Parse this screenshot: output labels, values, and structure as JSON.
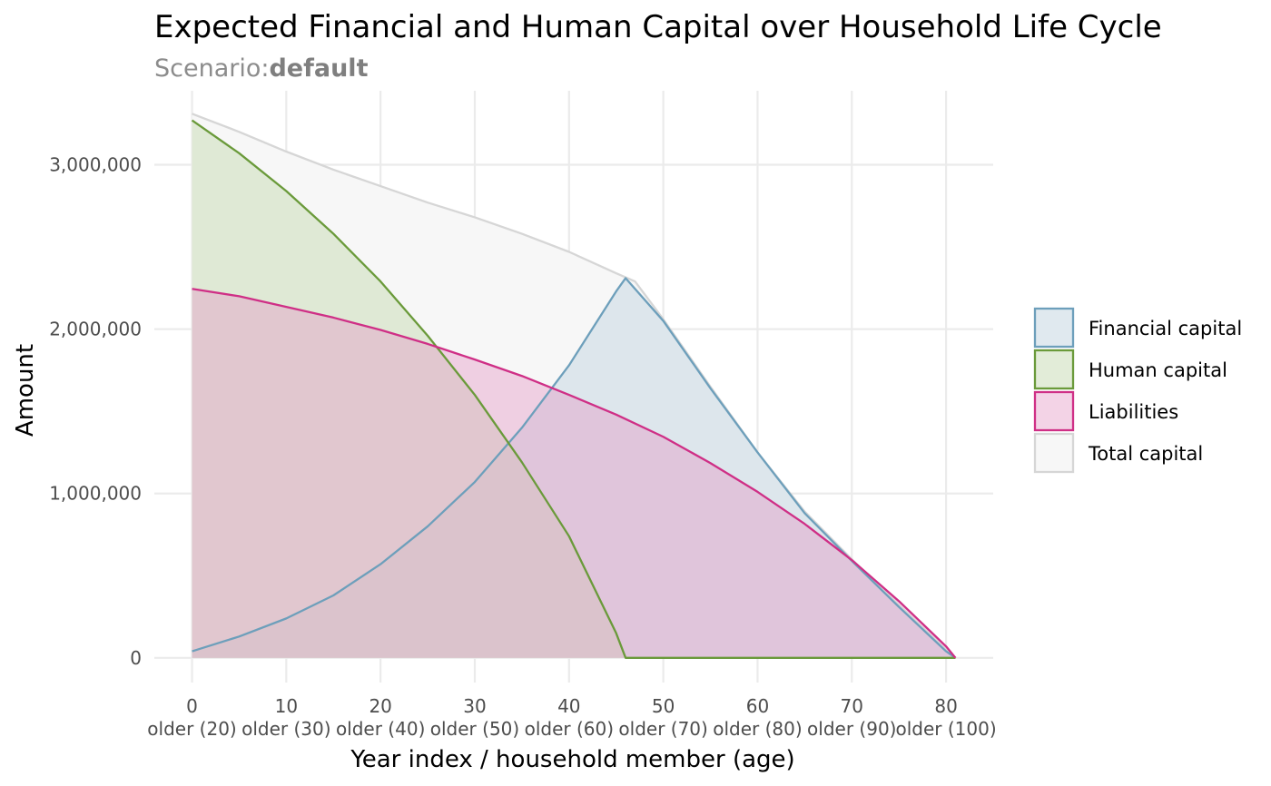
{
  "chart_data": {
    "type": "area",
    "title": "Expected Financial and Human Capital over Household Life Cycle",
    "subtitle_prefix": "Scenario:",
    "subtitle_value": "default",
    "xlabel": "Year index / household member (age)",
    "ylabel": "Amount",
    "xlim": [
      -4,
      85
    ],
    "ylim": [
      -150000,
      3450000
    ],
    "x_ticks": [
      0,
      10,
      20,
      30,
      40,
      50,
      60,
      70,
      80
    ],
    "x_tick_labels": [
      "0",
      "10",
      "20",
      "30",
      "40",
      "50",
      "60",
      "70",
      "80"
    ],
    "x_tick_sublabels": [
      "older (20)",
      "older (30)",
      "older (40)",
      "older (50)",
      "older (60)",
      "older (70)",
      "older (80)",
      "older (90)",
      "older (100)"
    ],
    "y_ticks": [
      0,
      1000000,
      2000000,
      3000000
    ],
    "y_tick_labels": [
      "0",
      "1,000,000",
      "2,000,000",
      "3,000,000"
    ],
    "grid": true,
    "legend_position": "right",
    "series": [
      {
        "name": "Total capital",
        "line_color": "#d6d6d6",
        "fill_color": "#f7f7f7",
        "fill_opacity": 1,
        "x": [
          0,
          5,
          10,
          15,
          20,
          25,
          30,
          35,
          40,
          45,
          47,
          50,
          55,
          60,
          65,
          70,
          75,
          80,
          81
        ],
        "y": [
          3310000,
          3200000,
          3080000,
          2970000,
          2870000,
          2770000,
          2680000,
          2580000,
          2470000,
          2340000,
          2290000,
          2060000,
          1650000,
          1250000,
          890000,
          600000,
          320000,
          50000,
          0
        ]
      },
      {
        "name": "Financial capital",
        "line_color": "#6d9fbb",
        "fill_color": "#cbdbe4",
        "fill_opacity": 0.6,
        "x": [
          0,
          5,
          10,
          15,
          20,
          25,
          30,
          35,
          40,
          45,
          46,
          50,
          55,
          60,
          65,
          70,
          75,
          80,
          81
        ],
        "y": [
          40000,
          130000,
          240000,
          380000,
          570000,
          800000,
          1070000,
          1400000,
          1780000,
          2230000,
          2310000,
          2050000,
          1640000,
          1250000,
          880000,
          590000,
          310000,
          40000,
          0
        ]
      },
      {
        "name": "Human capital",
        "line_color": "#6a9a3a",
        "fill_color": "#cfe0be",
        "fill_opacity": 0.6,
        "x": [
          0,
          5,
          10,
          15,
          20,
          25,
          30,
          35,
          40,
          45,
          46,
          50,
          55,
          60,
          65,
          70,
          75,
          80,
          81
        ],
        "y": [
          3270000,
          3070000,
          2840000,
          2580000,
          2290000,
          1960000,
          1600000,
          1190000,
          740000,
          150000,
          0,
          0,
          0,
          0,
          0,
          0,
          0,
          0,
          0
        ]
      },
      {
        "name": "Liabilities",
        "line_color": "#cf2f86",
        "fill_color": "#e59ec8",
        "fill_opacity": 0.45,
        "x": [
          0,
          5,
          10,
          15,
          20,
          25,
          30,
          35,
          40,
          45,
          50,
          55,
          60,
          65,
          70,
          75,
          80,
          81
        ],
        "y": [
          2245000,
          2200000,
          2135000,
          2070000,
          1995000,
          1910000,
          1815000,
          1715000,
          1600000,
          1480000,
          1345000,
          1185000,
          1010000,
          815000,
          595000,
          345000,
          70000,
          0
        ]
      }
    ],
    "legend_order": [
      "Financial capital",
      "Human capital",
      "Liabilities",
      "Total capital"
    ]
  }
}
